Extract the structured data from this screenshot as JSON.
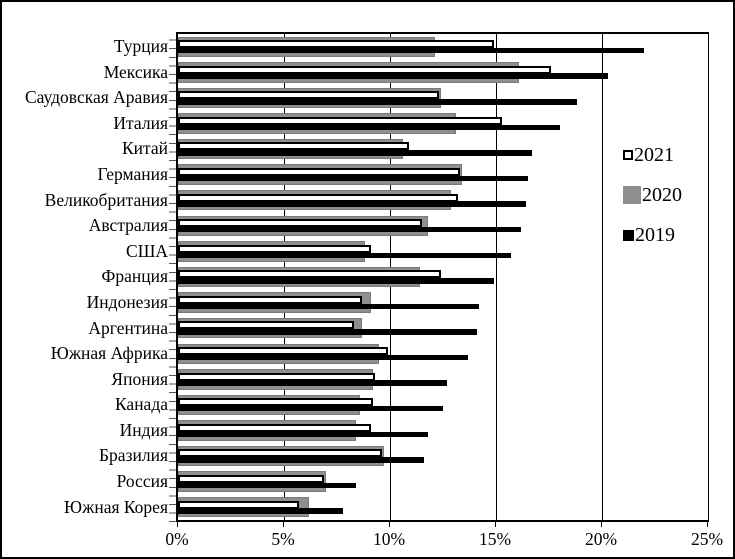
{
  "chart_data": {
    "type": "bar",
    "orientation": "horizontal",
    "title": "",
    "xlabel": "",
    "ylabel": "",
    "xlim": [
      0,
      25
    ],
    "x_tick_values": [
      0,
      5,
      10,
      15,
      20,
      25
    ],
    "x_tick_labels": [
      "0%",
      "5%",
      "10%",
      "15%",
      "20%",
      "25%"
    ],
    "grid": "vertical-major",
    "legend_position": "inside-right",
    "categories": [
      "Турция",
      "Мексика",
      "Саудовская Аравия",
      "Италия",
      "Китай",
      "Германия",
      "Великобритания",
      "Австралия",
      "США",
      "Франция",
      "Индонезия",
      "Аргентина",
      "Южная Африка",
      "Япония",
      "Канада",
      "Индия",
      "Бразилия",
      "Россия",
      "Южная Корея"
    ],
    "series": [
      {
        "name": "2021",
        "fill": "#ffffff",
        "border": "#000000",
        "values": [
          14.9,
          17.6,
          12.3,
          15.3,
          10.9,
          13.3,
          13.2,
          11.5,
          9.1,
          12.4,
          8.7,
          8.3,
          9.9,
          9.3,
          9.2,
          9.1,
          9.6,
          6.9,
          5.7
        ]
      },
      {
        "name": "2020",
        "fill": "#8f8f8f",
        "border": "#7a7a7a",
        "values": [
          12.1,
          16.1,
          12.4,
          13.1,
          10.6,
          13.4,
          12.9,
          11.8,
          8.8,
          11.4,
          9.1,
          8.7,
          9.5,
          9.2,
          8.6,
          8.4,
          9.7,
          7.0,
          6.2
        ]
      },
      {
        "name": "2019",
        "fill": "#000000",
        "border": "#000000",
        "values": [
          22.0,
          20.3,
          18.8,
          18.0,
          16.7,
          16.5,
          16.4,
          16.2,
          15.7,
          14.9,
          14.2,
          14.1,
          13.7,
          12.7,
          12.5,
          11.8,
          11.6,
          8.4,
          7.8
        ]
      }
    ],
    "colors": {
      "background": "#ffffff",
      "axis": "#000000",
      "gridline": "#000000",
      "bar_2021": "#ffffff",
      "bar_2020": "#8f8f8f",
      "bar_2019": "#000000"
    }
  }
}
